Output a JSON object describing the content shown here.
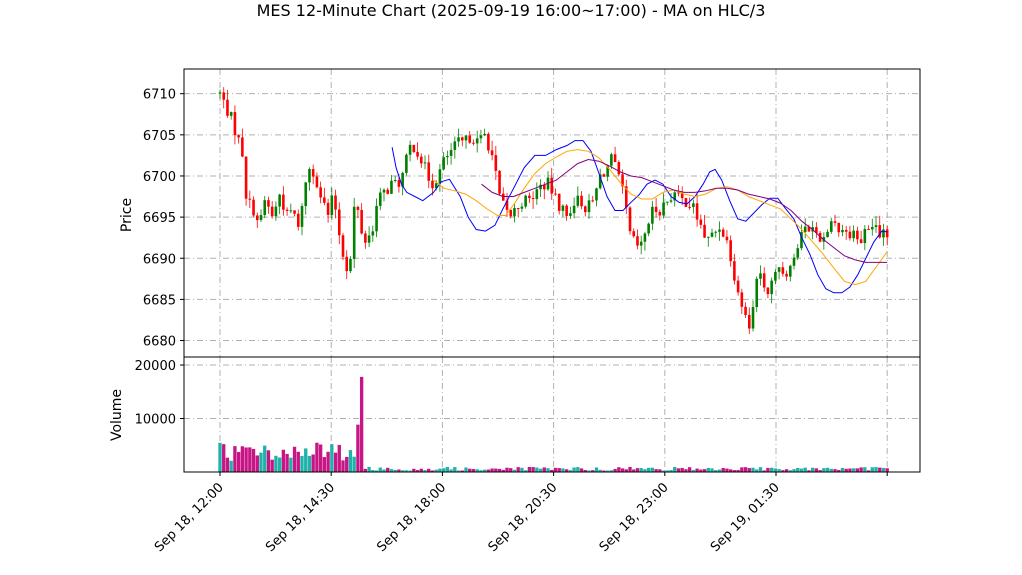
{
  "chart_data": {
    "type": "candlestick",
    "title": "MES 12-Minute Chart (2025-09-19 16:00~17:00) - MA on HLC/3",
    "price_panel": {
      "ylabel": "Price",
      "yticks": [
        6680,
        6685,
        6690,
        6695,
        6700,
        6705,
        6710
      ],
      "ylim": [
        6678,
        6713
      ],
      "grid": true,
      "ma_lines": [
        {
          "color": "#0000ff",
          "points": [
            [
              6.45,
              6703.5
            ],
            [
              6.6,
              6701
            ],
            [
              6.8,
              6699
            ],
            [
              7.0,
              6698
            ],
            [
              7.3,
              6697.5
            ],
            [
              7.6,
              6697
            ],
            [
              8.0,
              6698
            ],
            [
              8.3,
              6699.3
            ],
            [
              8.6,
              6699.6
            ],
            [
              9.0,
              6697.5
            ],
            [
              9.3,
              6695
            ],
            [
              9.6,
              6693.5
            ],
            [
              9.95,
              6693.3
            ],
            [
              10.3,
              6694
            ],
            [
              10.6,
              6696
            ],
            [
              11.0,
              6698.5
            ],
            [
              11.4,
              6701
            ],
            [
              11.8,
              6702.5
            ],
            [
              12.2,
              6702.5
            ],
            [
              12.6,
              6703.2
            ],
            [
              13.0,
              6703.7
            ],
            [
              13.3,
              6704.3
            ],
            [
              13.6,
              6704.3
            ],
            [
              13.9,
              6703
            ],
            [
              14.2,
              6700.3
            ],
            [
              14.5,
              6697.5
            ],
            [
              14.8,
              6695.8
            ],
            [
              15.1,
              6695.8
            ],
            [
              15.4,
              6696.8
            ],
            [
              15.7,
              6697.7
            ],
            [
              16.0,
              6699
            ],
            [
              16.3,
              6699.5
            ],
            [
              16.6,
              6699
            ],
            [
              16.9,
              6697.5
            ],
            [
              17.2,
              6696.8
            ],
            [
              17.5,
              6696.6
            ],
            [
              17.8,
              6697.5
            ],
            [
              18.1,
              6699
            ],
            [
              18.35,
              6700.5
            ],
            [
              18.55,
              6700.8
            ],
            [
              18.8,
              6699.5
            ],
            [
              19.1,
              6697
            ],
            [
              19.4,
              6694.8
            ],
            [
              19.7,
              6694.5
            ],
            [
              20.0,
              6695.5
            ],
            [
              20.3,
              6696.5
            ],
            [
              20.6,
              6697.3
            ],
            [
              20.9,
              6697.3
            ],
            [
              21.2,
              6696
            ],
            [
              21.5,
              6694.8
            ],
            [
              21.8,
              6692.5
            ],
            [
              22.1,
              6690.5
            ],
            [
              22.4,
              6688
            ],
            [
              22.7,
              6686.3
            ],
            [
              23.0,
              6685.8
            ],
            [
              23.3,
              6685.8
            ],
            [
              23.6,
              6686.5
            ],
            [
              23.9,
              6688
            ],
            [
              24.2,
              6690
            ],
            [
              24.5,
              6692
            ],
            [
              24.8,
              6693.3
            ],
            [
              25.0,
              6693.2
            ]
          ]
        },
        {
          "color": "#ffa500",
          "points": [
            [
              8.0,
              6699.5
            ],
            [
              8.4,
              6698.5
            ],
            [
              8.8,
              6698.2
            ],
            [
              9.2,
              6697.8
            ],
            [
              9.6,
              6697
            ],
            [
              10.0,
              6696
            ],
            [
              10.4,
              6695.2
            ],
            [
              10.7,
              6695.2
            ],
            [
              11.0,
              6696.5
            ],
            [
              11.4,
              6698.5
            ],
            [
              11.8,
              6700.3
            ],
            [
              12.2,
              6701.5
            ],
            [
              12.6,
              6702.3
            ],
            [
              13.0,
              6703
            ],
            [
              13.4,
              6703.2
            ],
            [
              13.8,
              6703
            ],
            [
              14.2,
              6702.2
            ],
            [
              14.6,
              6700.8
            ],
            [
              15.0,
              6699.2
            ],
            [
              15.4,
              6697.8
            ],
            [
              15.8,
              6697.2
            ],
            [
              16.2,
              6697.2
            ],
            [
              16.6,
              6698
            ],
            [
              17.0,
              6698.3
            ],
            [
              17.4,
              6697.8
            ],
            [
              17.8,
              6697.5
            ],
            [
              18.2,
              6697.8
            ],
            [
              18.6,
              6698.5
            ],
            [
              19.0,
              6698.7
            ],
            [
              19.4,
              6698.3
            ],
            [
              19.8,
              6697.5
            ],
            [
              20.2,
              6697
            ],
            [
              20.6,
              6696.5
            ],
            [
              21.0,
              6696
            ],
            [
              21.4,
              6694.8
            ],
            [
              21.8,
              6693.5
            ],
            [
              22.2,
              6692
            ],
            [
              22.6,
              6690.5
            ],
            [
              23.0,
              6688.8
            ],
            [
              23.4,
              6687.2
            ],
            [
              23.8,
              6686.8
            ],
            [
              24.2,
              6687.2
            ],
            [
              24.6,
              6689
            ],
            [
              25.0,
              6690.8
            ]
          ]
        },
        {
          "color": "#800080",
          "points": [
            [
              9.8,
              6699
            ],
            [
              10.2,
              6698
            ],
            [
              10.6,
              6697.5
            ],
            [
              11.0,
              6697.5
            ],
            [
              11.4,
              6698
            ],
            [
              11.8,
              6698.5
            ],
            [
              12.2,
              6699
            ],
            [
              12.6,
              6699.5
            ],
            [
              13.0,
              6700.5
            ],
            [
              13.4,
              6701.5
            ],
            [
              13.8,
              6702
            ],
            [
              14.2,
              6701.8
            ],
            [
              14.6,
              6701.2
            ],
            [
              15.0,
              6700.5
            ],
            [
              15.4,
              6700
            ],
            [
              15.8,
              6699.8
            ],
            [
              16.2,
              6699.3
            ],
            [
              16.6,
              6698.8
            ],
            [
              17.0,
              6698.3
            ],
            [
              17.4,
              6698
            ],
            [
              17.8,
              6698
            ],
            [
              18.2,
              6698.2
            ],
            [
              18.6,
              6698.5
            ],
            [
              19.0,
              6698.5
            ],
            [
              19.4,
              6698.3
            ],
            [
              19.8,
              6697.8
            ],
            [
              20.2,
              6697.5
            ],
            [
              20.6,
              6697.2
            ],
            [
              21.0,
              6696.7
            ],
            [
              21.4,
              6695.8
            ],
            [
              21.8,
              6694.5
            ],
            [
              22.2,
              6693.5
            ],
            [
              22.6,
              6692.3
            ],
            [
              23.0,
              6691.3
            ],
            [
              23.4,
              6690.3
            ],
            [
              23.8,
              6689.8
            ],
            [
              24.2,
              6689.5
            ],
            [
              24.6,
              6689.5
            ],
            [
              25.0,
              6689.5
            ]
          ]
        }
      ]
    },
    "volume_panel": {
      "ylabel": "Volume",
      "yticks": [
        10000,
        20000
      ],
      "ylim": [
        0,
        21500
      ],
      "grid": true
    },
    "x_axis": {
      "tick_labels": [
        "Sep 18, 12:00",
        "Sep 18, 14:30",
        "Sep 18, 18:00",
        "Sep 18, 20:30",
        "Sep 18, 23:00",
        "Sep 19, 01:30"
      ]
    },
    "colors": {
      "up": "#008000",
      "down": "#ff0000",
      "vol_up": "#20b2aa",
      "vol_down": "#c71585",
      "grid": "#b0b0b0"
    },
    "price_path": [
      [
        0,
        6710
      ],
      [
        0.5,
        6707
      ],
      [
        1,
        6703
      ],
      [
        1.2,
        6697
      ],
      [
        1.5,
        6696
      ],
      [
        1.8,
        6694
      ],
      [
        2.0,
        6697
      ],
      [
        2.2,
        6696
      ],
      [
        2.4,
        6695
      ],
      [
        2.7,
        6698
      ],
      [
        3.0,
        6695
      ],
      [
        3.3,
        6696
      ],
      [
        3.5,
        6693
      ],
      [
        3.7,
        6697
      ],
      [
        4.0,
        6701
      ],
      [
        4.3,
        6700
      ],
      [
        4.6,
        6697
      ],
      [
        4.9,
        6695
      ],
      [
        5.1,
        6698
      ],
      [
        5.3,
        6694
      ],
      [
        5.5,
        6691
      ],
      [
        5.7,
        6689
      ],
      [
        5.9,
        6690
      ],
      [
        6.0,
        6692
      ],
      [
        6.05,
        6698
      ],
      [
        6.3,
        6694
      ],
      [
        6.5,
        6692
      ],
      [
        6.8,
        6693
      ],
      [
        7.1,
        6697
      ],
      [
        7.4,
        6698
      ],
      [
        7.7,
        6699
      ],
      [
        8.0,
        6699
      ],
      [
        8.2,
        6700
      ],
      [
        8.4,
        6702
      ],
      [
        8.6,
        6704
      ],
      [
        8.9,
        6703
      ],
      [
        9.2,
        6701
      ],
      [
        9.5,
        6699
      ],
      [
        9.8,
        6700
      ],
      [
        10.1,
        6702
      ],
      [
        10.4,
        6703
      ],
      [
        10.7,
        6704
      ],
      [
        11.0,
        6704
      ],
      [
        11.3,
        6705
      ],
      [
        11.6,
        6704
      ],
      [
        11.9,
        6705
      ],
      [
        12.2,
        6703
      ],
      [
        12.4,
        6700
      ],
      [
        12.6,
        6697
      ],
      [
        12.8,
        6696
      ],
      [
        13.0,
        6695
      ],
      [
        13.3,
        6696
      ],
      [
        13.6,
        6697
      ],
      [
        13.9,
        6697
      ],
      [
        14.2,
        6698
      ],
      [
        14.5,
        6699
      ],
      [
        14.8,
        6699
      ],
      [
        15.1,
        6697
      ],
      [
        15.4,
        6696
      ],
      [
        15.6,
        6695
      ],
      [
        15.9,
        6697
      ],
      [
        16.2,
        6697
      ],
      [
        16.5,
        6696
      ],
      [
        16.8,
        6697
      ],
      [
        17.1,
        6700
      ],
      [
        17.4,
        6701
      ],
      [
        17.6,
        6702
      ],
      [
        17.9,
        6700
      ],
      [
        18.2,
        6697
      ],
      [
        18.4,
        6693
      ],
      [
        18.6,
        6692
      ],
      [
        18.9,
        6691
      ],
      [
        19.2,
        6694
      ],
      [
        19.5,
        6696
      ],
      [
        19.8,
        6696
      ],
      [
        20.1,
        6697
      ],
      [
        20.4,
        6698
      ],
      [
        20.7,
        6697
      ],
      [
        21.0,
        6697
      ],
      [
        21.3,
        6696
      ],
      [
        21.6,
        6694
      ],
      [
        21.9,
        6692
      ],
      [
        22.2,
        6693
      ],
      [
        22.5,
        6694
      ],
      [
        22.8,
        6692
      ],
      [
        23.0,
        6690
      ],
      [
        23.2,
        6687
      ],
      [
        23.4,
        6685
      ],
      [
        23.6,
        6683
      ],
      [
        23.8,
        6682
      ],
      [
        24.0,
        6685
      ],
      [
        24.2,
        6688
      ],
      [
        24.4,
        6687
      ],
      [
        24.6,
        6686
      ],
      [
        24.8,
        6687
      ],
      [
        25.0,
        6688
      ],
      [
        25.2,
        6689
      ],
      [
        25.4,
        6688
      ],
      [
        25.7,
        6690
      ],
      [
        26.0,
        6691
      ],
      [
        26.3,
        6694
      ],
      [
        26.6,
        6694
      ],
      [
        26.9,
        6693
      ],
      [
        27.2,
        6692
      ],
      [
        27.5,
        6695
      ],
      [
        27.8,
        6694
      ],
      [
        28.1,
        6693
      ],
      [
        28.4,
        6693
      ],
      [
        28.7,
        6692
      ],
      [
        29.0,
        6693
      ],
      [
        29.3,
        6694
      ],
      [
        29.6,
        6693
      ],
      [
        29.9,
        6693
      ],
      [
        30.0,
        6693
      ]
    ]
  }
}
